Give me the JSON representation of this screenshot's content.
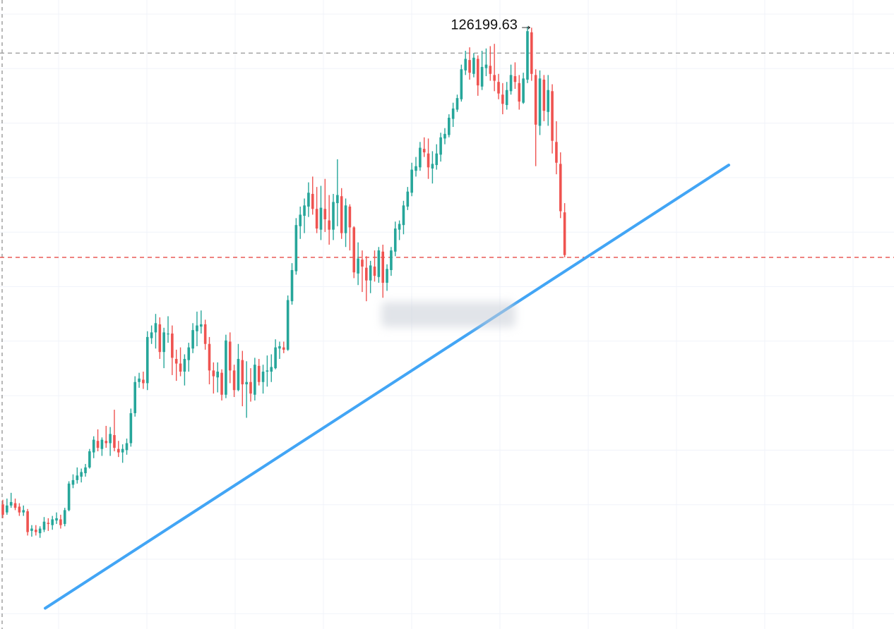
{
  "colors": {
    "background": "#ffffff",
    "grid": "#f0f3fa",
    "up": "#26a69a",
    "down": "#ef5350",
    "trendline": "#42a5f5",
    "high_line": "#9e9e9e",
    "current_line": "#e53935",
    "label": "#111111"
  },
  "annotations": {
    "peak_label": "126199.63",
    "peak_arrow": "→"
  },
  "chart_data": {
    "type": "candlestick",
    "title": "",
    "xlabel": "",
    "ylabel": "",
    "ylim": [
      74000,
      128500
    ],
    "grid": true,
    "peak_high": 126199.63,
    "reference_lines": [
      {
        "kind": "previous-high",
        "value": 123900,
        "style": "dashed",
        "color": "#9e9e9e"
      },
      {
        "kind": "current-price",
        "value": 106200,
        "style": "dashed",
        "color": "#e53935"
      }
    ],
    "trendline": {
      "start": [
        0,
        75800
      ],
      "end": [
        87,
        114200
      ],
      "color": "#42a5f5"
    },
    "candles": [
      [
        84800,
        85200,
        83600,
        83900
      ],
      [
        84100,
        85300,
        83900,
        84700
      ],
      [
        84700,
        85800,
        84500,
        85000
      ],
      [
        84900,
        85300,
        84300,
        84500
      ],
      [
        84600,
        84900,
        83800,
        84100
      ],
      [
        84100,
        84700,
        83800,
        84300
      ],
      [
        84200,
        84400,
        82100,
        82400
      ],
      [
        82500,
        83000,
        82000,
        82700
      ],
      [
        82600,
        83000,
        82100,
        82400
      ],
      [
        82300,
        82900,
        81900,
        82700
      ],
      [
        82600,
        83700,
        82400,
        83300
      ],
      [
        83200,
        83600,
        82500,
        83100
      ],
      [
        83000,
        83800,
        82600,
        83500
      ],
      [
        83400,
        84100,
        83100,
        83600
      ],
      [
        83500,
        83900,
        82700,
        83000
      ],
      [
        83100,
        84500,
        82900,
        84300
      ],
      [
        84300,
        86800,
        84200,
        86600
      ],
      [
        86500,
        87400,
        86200,
        86900
      ],
      [
        86900,
        88000,
        86600,
        87300
      ],
      [
        87200,
        87900,
        86700,
        87600
      ],
      [
        87500,
        88300,
        87200,
        88000
      ],
      [
        88000,
        89600,
        87900,
        89400
      ],
      [
        89300,
        90700,
        88800,
        90400
      ],
      [
        90300,
        91300,
        89400,
        89700
      ],
      [
        89600,
        90600,
        89000,
        90400
      ],
      [
        90300,
        91600,
        89700,
        90100
      ],
      [
        90100,
        91500,
        89000,
        90900
      ],
      [
        90800,
        93000,
        89400,
        89700
      ],
      [
        89600,
        90300,
        88900,
        89300
      ],
      [
        89300,
        90000,
        88400,
        89600
      ],
      [
        89500,
        90500,
        89100,
        90100
      ],
      [
        90100,
        93100,
        89800,
        92700
      ],
      [
        92700,
        95900,
        92400,
        95400
      ],
      [
        95400,
        96200,
        94900,
        95700
      ],
      [
        95600,
        96300,
        94800,
        95300
      ],
      [
        95300,
        99800,
        94700,
        99300
      ],
      [
        99200,
        100300,
        98700,
        99700
      ],
      [
        99700,
        101300,
        98300,
        100500
      ],
      [
        100400,
        101000,
        97400,
        98000
      ],
      [
        98000,
        100100,
        96600,
        99700
      ],
      [
        99600,
        101100,
        98800,
        99600
      ],
      [
        99600,
        100300,
        96000,
        97500
      ],
      [
        97400,
        98200,
        95500,
        97000
      ],
      [
        97000,
        98400,
        95900,
        96300
      ],
      [
        96300,
        97800,
        95100,
        97400
      ],
      [
        97300,
        98800,
        96300,
        98400
      ],
      [
        98300,
        100500,
        97900,
        99900
      ],
      [
        99800,
        101500,
        98500,
        100300
      ],
      [
        100200,
        101600,
        99600,
        100400
      ],
      [
        100400,
        100800,
        98200,
        98700
      ],
      [
        98700,
        99300,
        95200,
        96400
      ],
      [
        96400,
        97100,
        94400,
        95900
      ],
      [
        95800,
        97100,
        94500,
        96300
      ],
      [
        96200,
        96500,
        93800,
        94300
      ],
      [
        94300,
        99500,
        94000,
        99000
      ],
      [
        98900,
        99700,
        95300,
        96400
      ],
      [
        96400,
        96900,
        94100,
        94700
      ],
      [
        94700,
        98700,
        94600,
        97400
      ],
      [
        97300,
        98100,
        93300,
        95200
      ],
      [
        95200,
        97200,
        92300,
        95400
      ],
      [
        95400,
        96600,
        93700,
        94400
      ],
      [
        94300,
        97500,
        93800,
        96900
      ],
      [
        96800,
        97400,
        95100,
        95400
      ],
      [
        95400,
        96900,
        94400,
        96300
      ],
      [
        96300,
        97700,
        95000,
        96400
      ],
      [
        96300,
        97800,
        95400,
        96700
      ],
      [
        96600,
        99100,
        96500,
        98400
      ],
      [
        98300,
        98900,
        97400,
        98500
      ],
      [
        98400,
        98900,
        97900,
        98200
      ],
      [
        98200,
        102900,
        98100,
        102500
      ],
      [
        102400,
        105700,
        102100,
        105100
      ],
      [
        105000,
        109600,
        104700,
        109000
      ],
      [
        108900,
        110600,
        107800,
        109900
      ],
      [
        109800,
        111300,
        108300,
        110700
      ],
      [
        110600,
        112700,
        109700,
        111800
      ],
      [
        111700,
        113200,
        109900,
        110400
      ],
      [
        110400,
        112300,
        108300,
        108700
      ],
      [
        108600,
        112400,
        107700,
        110500
      ],
      [
        110400,
        113000,
        108400,
        109500
      ],
      [
        109400,
        111600,
        107300,
        108600
      ],
      [
        108600,
        111700,
        107700,
        111000
      ],
      [
        110900,
        114700,
        108900,
        111600
      ],
      [
        111500,
        112200,
        107800,
        108300
      ],
      [
        108300,
        111300,
        107100,
        110700
      ],
      [
        110600,
        110800,
        106800,
        108800
      ],
      [
        108800,
        108900,
        104400,
        104900
      ],
      [
        104800,
        107500,
        103800,
        106100
      ],
      [
        106000,
        106800,
        103200,
        105400
      ],
      [
        105300,
        106300,
        102400,
        104200
      ],
      [
        104200,
        105900,
        103100,
        105500
      ],
      [
        105400,
        106800,
        104100,
        104600
      ],
      [
        104500,
        107100,
        104000,
        106800
      ],
      [
        106700,
        107300,
        102700,
        104000
      ],
      [
        104000,
        105600,
        103300,
        105200
      ],
      [
        105100,
        107100,
        104600,
        106800
      ],
      [
        106700,
        109300,
        106300,
        108700
      ],
      [
        108600,
        109400,
        107700,
        109100
      ],
      [
        109000,
        111100,
        108200,
        110700
      ],
      [
        110600,
        112300,
        110300,
        111900
      ],
      [
        111800,
        114400,
        111500,
        113800
      ],
      [
        113700,
        114900,
        113200,
        114100
      ],
      [
        114000,
        116200,
        113700,
        115700
      ],
      [
        115600,
        116600,
        114900,
        115300
      ],
      [
        115200,
        116500,
        113000,
        114000
      ],
      [
        113900,
        115400,
        112600,
        114300
      ],
      [
        114200,
        116000,
        113800,
        115200
      ],
      [
        115100,
        117000,
        114500,
        116600
      ],
      [
        116500,
        117400,
        116000,
        116900
      ],
      [
        116800,
        118600,
        116600,
        118300
      ],
      [
        118200,
        119600,
        117500,
        119100
      ],
      [
        119000,
        120300,
        118800,
        120000
      ],
      [
        119900,
        122900,
        119700,
        122500
      ],
      [
        122400,
        124100,
        122000,
        123400
      ],
      [
        123300,
        124400,
        121600,
        122200
      ],
      [
        122100,
        123900,
        121800,
        123500
      ],
      [
        123400,
        123700,
        120200,
        121100
      ],
      [
        121000,
        124100,
        120700,
        122700
      ],
      [
        122600,
        124300,
        121900,
        122900
      ],
      [
        122800,
        124500,
        121500,
        122100
      ],
      [
        122000,
        124700,
        120600,
        121500
      ],
      [
        121400,
        122100,
        119900,
        120400
      ],
      [
        120300,
        121300,
        118600,
        119500
      ],
      [
        119400,
        121400,
        119000,
        120700
      ],
      [
        120600,
        122900,
        120300,
        122000
      ],
      [
        121900,
        123100,
        120800,
        121400
      ],
      [
        121300,
        122000,
        119000,
        119700
      ],
      [
        119600,
        122200,
        119500,
        121700
      ],
      [
        121600,
        126199.63,
        121300,
        125800
      ],
      [
        125700,
        126100,
        121500,
        122100
      ],
      [
        122000,
        122500,
        114100,
        117700
      ],
      [
        117600,
        122400,
        116800,
        121700
      ],
      [
        121600,
        122000,
        118000,
        118900
      ],
      [
        118800,
        122000,
        117600,
        120700
      ],
      [
        120600,
        121200,
        115200,
        116300
      ],
      [
        116200,
        118000,
        113400,
        114400
      ],
      [
        114300,
        115300,
        109600,
        110200
      ],
      [
        110100,
        110900,
        106200,
        106400
      ]
    ]
  }
}
